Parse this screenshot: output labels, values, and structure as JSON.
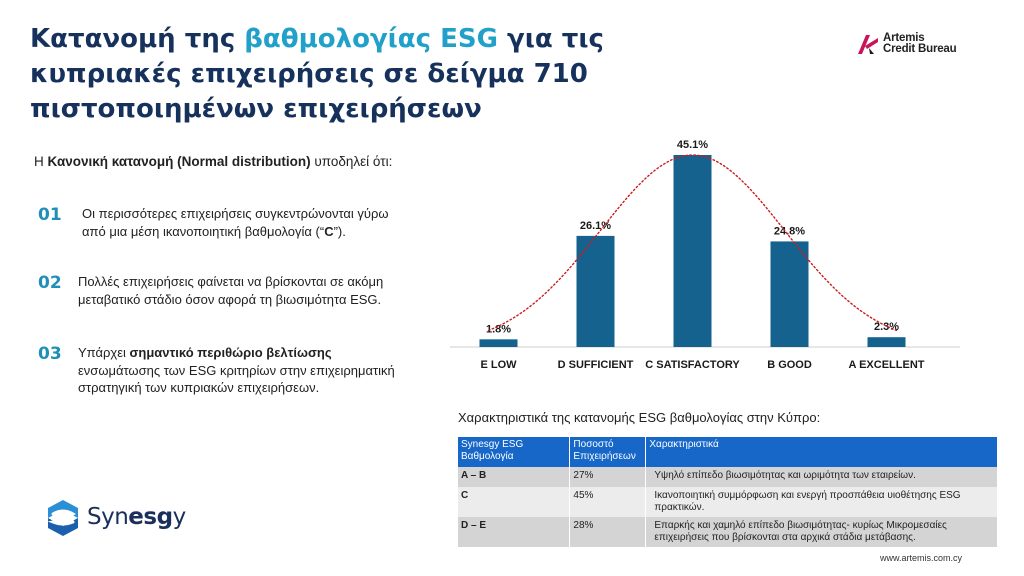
{
  "title": {
    "part1": "Κατανομή της ",
    "highlight": "βαθμολογίας ESG",
    "part2": " για τις κυπριακές επιχειρήσεις σε δείγμα 710 πιστοποιημένων επιχειρήσεων"
  },
  "brand": {
    "artemis_line1": "Artemis",
    "artemis_line2": "Credit Bureau",
    "synesgy_pre": "Syn",
    "synesgy_bold": "esg",
    "synesgy_post": "y",
    "footer_url": "www.artemis.com.cy"
  },
  "colors": {
    "title": "#16325c",
    "accent": "#21a1c9",
    "bar": "#15628f",
    "curve": "#c81e1e",
    "table_header": "#1767c8"
  },
  "intro": {
    "prefix": "Η ",
    "bold": "Κανονική κατανομή (Normal distribution)",
    "suffix": " υποδηλεί ότι:"
  },
  "points": [
    {
      "num": "01",
      "pre": "Οι περισσότερες επιχειρήσεις συγκεντρώνονται γύρω από μια μέση ικανοποιητική βαθμολογία (“",
      "bold": "C",
      "post": "”)."
    },
    {
      "num": "02",
      "pre": "Πολλές επιχειρήσεις φαίνεται να βρίσκονται σε ακόμη μεταβατικό στάδιο όσον αφορά τη βιωσιμότητα ESG.",
      "bold": "",
      "post": ""
    },
    {
      "num": "03",
      "pre": "Υπάρχει ",
      "bold": "σημαντικό περιθώριο βελτίωσης",
      "post": " ενσωμάτωσης των ESG κριτηρίων στην επιχειρηματική στρατηγική των κυπριακών επιχειρήσεων."
    }
  ],
  "chart_data": {
    "type": "bar",
    "categories": [
      "E LOW",
      "D SUFFICIENT",
      "C SATISFACTORY",
      "B GOOD",
      "A  EXCELLENT"
    ],
    "values": [
      1.8,
      26.1,
      45.1,
      24.8,
      2.3
    ],
    "value_labels": [
      "1.8%",
      "26.1%",
      "45.1%",
      "24.8%",
      "2.3%"
    ],
    "unit": "%",
    "ylim": [
      0,
      50
    ],
    "grid": false,
    "overlay": {
      "type": "line",
      "style": "dotted",
      "shape": "normal curve"
    }
  },
  "table": {
    "caption": "Χαρακτηριστικά της κατανομής ESG βαθμολογίας στην Κύπρο:",
    "headers": [
      "Synesgy ESG Βαθμολογία",
      "Ποσοστό Επιχειρήσεων",
      "Χαρακτηριστικά"
    ],
    "rows": [
      {
        "grade": "A – B",
        "pct": "27%",
        "desc": "Υψηλό επίπεδο βιωσιμότητας και ωριμότητα των εταιρείων."
      },
      {
        "grade": "C",
        "pct": "45%",
        "desc": "Ικανοποιητική συμμόρφωση και ενεργή προσπάθεια υιοθέτησης ESG πρακτικών."
      },
      {
        "grade": "D – E",
        "pct": "28%",
        "desc": "Επαρκής και χαμηλό επίπεδο βιωσιμότητας- κυρίως Μικρομεσαίες επιχειρήσεις που βρίσκονται στα αρχικά στάδια μετάβασης."
      }
    ]
  }
}
